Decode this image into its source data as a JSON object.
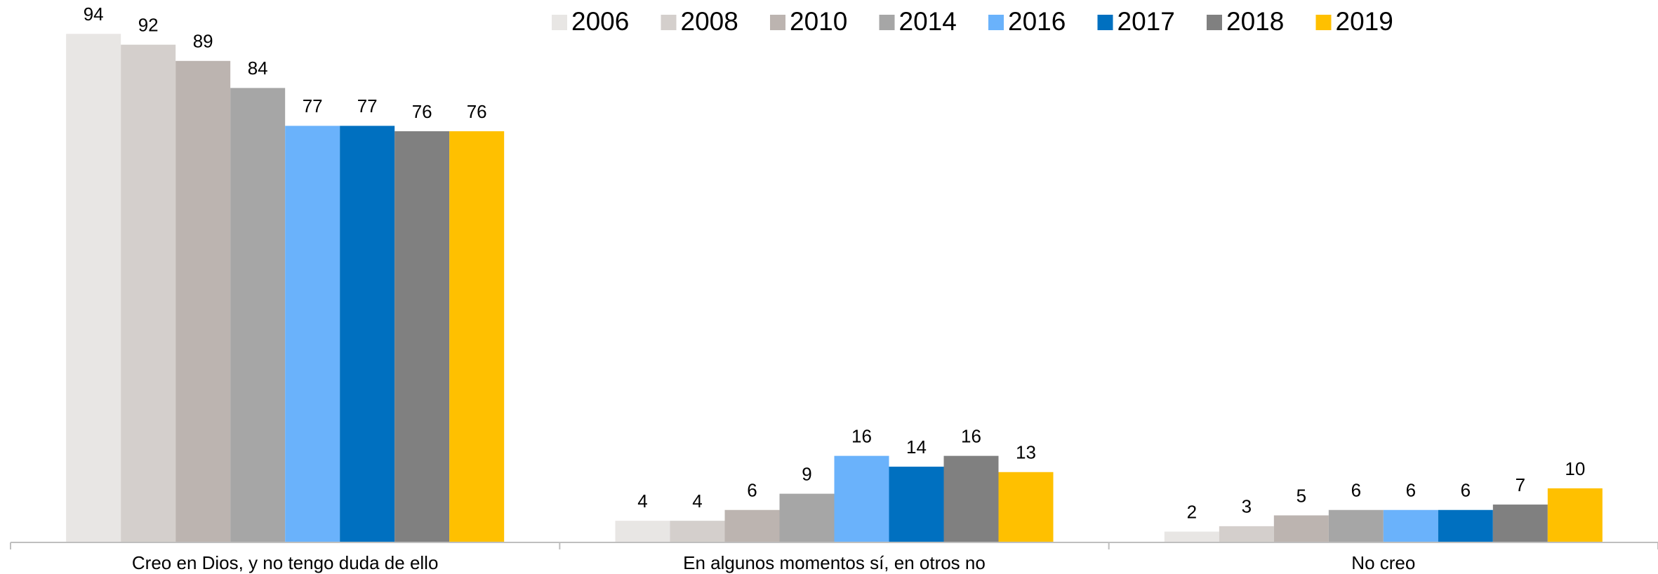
{
  "chart_data": {
    "type": "bar",
    "categories": [
      "Creo en Dios, y no tengo duda de ello",
      "En algunos momentos sí, en otros no",
      "No creo"
    ],
    "series": [
      {
        "name": "2006",
        "color": "#e8e6e4",
        "values": [
          94,
          4,
          2
        ]
      },
      {
        "name": "2008",
        "color": "#d4cfcc",
        "values": [
          92,
          4,
          3
        ]
      },
      {
        "name": "2010",
        "color": "#bcb4b0",
        "values": [
          89,
          6,
          5
        ]
      },
      {
        "name": "2014",
        "color": "#a6a6a6",
        "values": [
          84,
          9,
          6
        ]
      },
      {
        "name": "2016",
        "color": "#6ab2fb",
        "values": [
          77,
          16,
          6
        ]
      },
      {
        "name": "2017",
        "color": "#0070c0",
        "values": [
          77,
          14,
          6
        ]
      },
      {
        "name": "2018",
        "color": "#808080",
        "values": [
          76,
          16,
          7
        ]
      },
      {
        "name": "2019",
        "color": "#ffc000",
        "values": [
          76,
          13,
          10
        ]
      }
    ],
    "ylim": [
      0,
      100
    ],
    "legend": "top"
  }
}
